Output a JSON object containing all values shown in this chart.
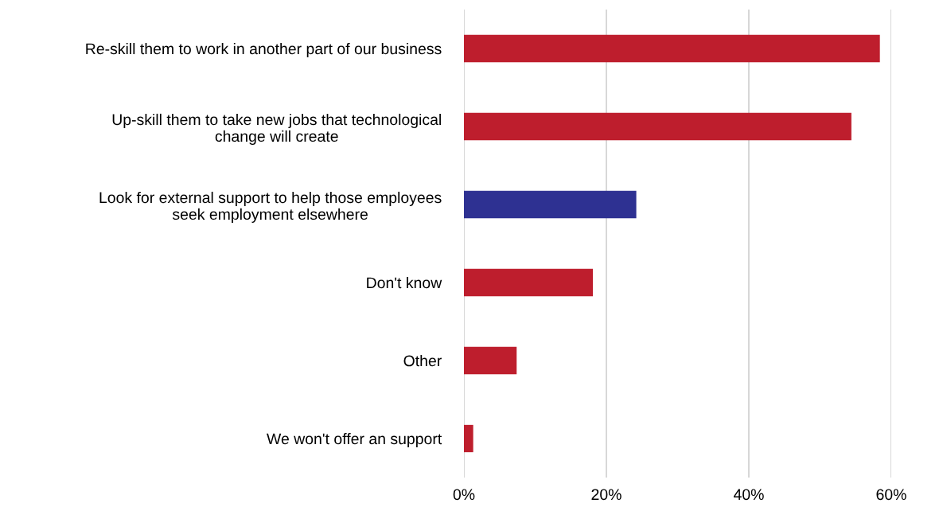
{
  "chart_data": {
    "type": "bar",
    "orientation": "horizontal",
    "categories": [
      "Re-skill them to work in another part of our business",
      "Up-skill them to take new jobs that technological\nchange will create",
      "Look for external support to help those employees\nseek employment elsewhere",
      "Don't know",
      "Other",
      "We won't offer an support"
    ],
    "values": [
      58.4,
      54.4,
      24.2,
      18.1,
      7.4,
      1.3
    ],
    "colors": [
      "#be1e2d",
      "#be1e2d",
      "#2e3192",
      "#be1e2d",
      "#be1e2d",
      "#be1e2d"
    ],
    "xlim": [
      0,
      60
    ],
    "xticks": [
      {
        "value": 0,
        "label": "0%"
      },
      {
        "value": 20,
        "label": "20%"
      },
      {
        "value": 40,
        "label": "40%"
      },
      {
        "value": 60,
        "label": "60%"
      }
    ],
    "grid": "x",
    "legend": false
  }
}
